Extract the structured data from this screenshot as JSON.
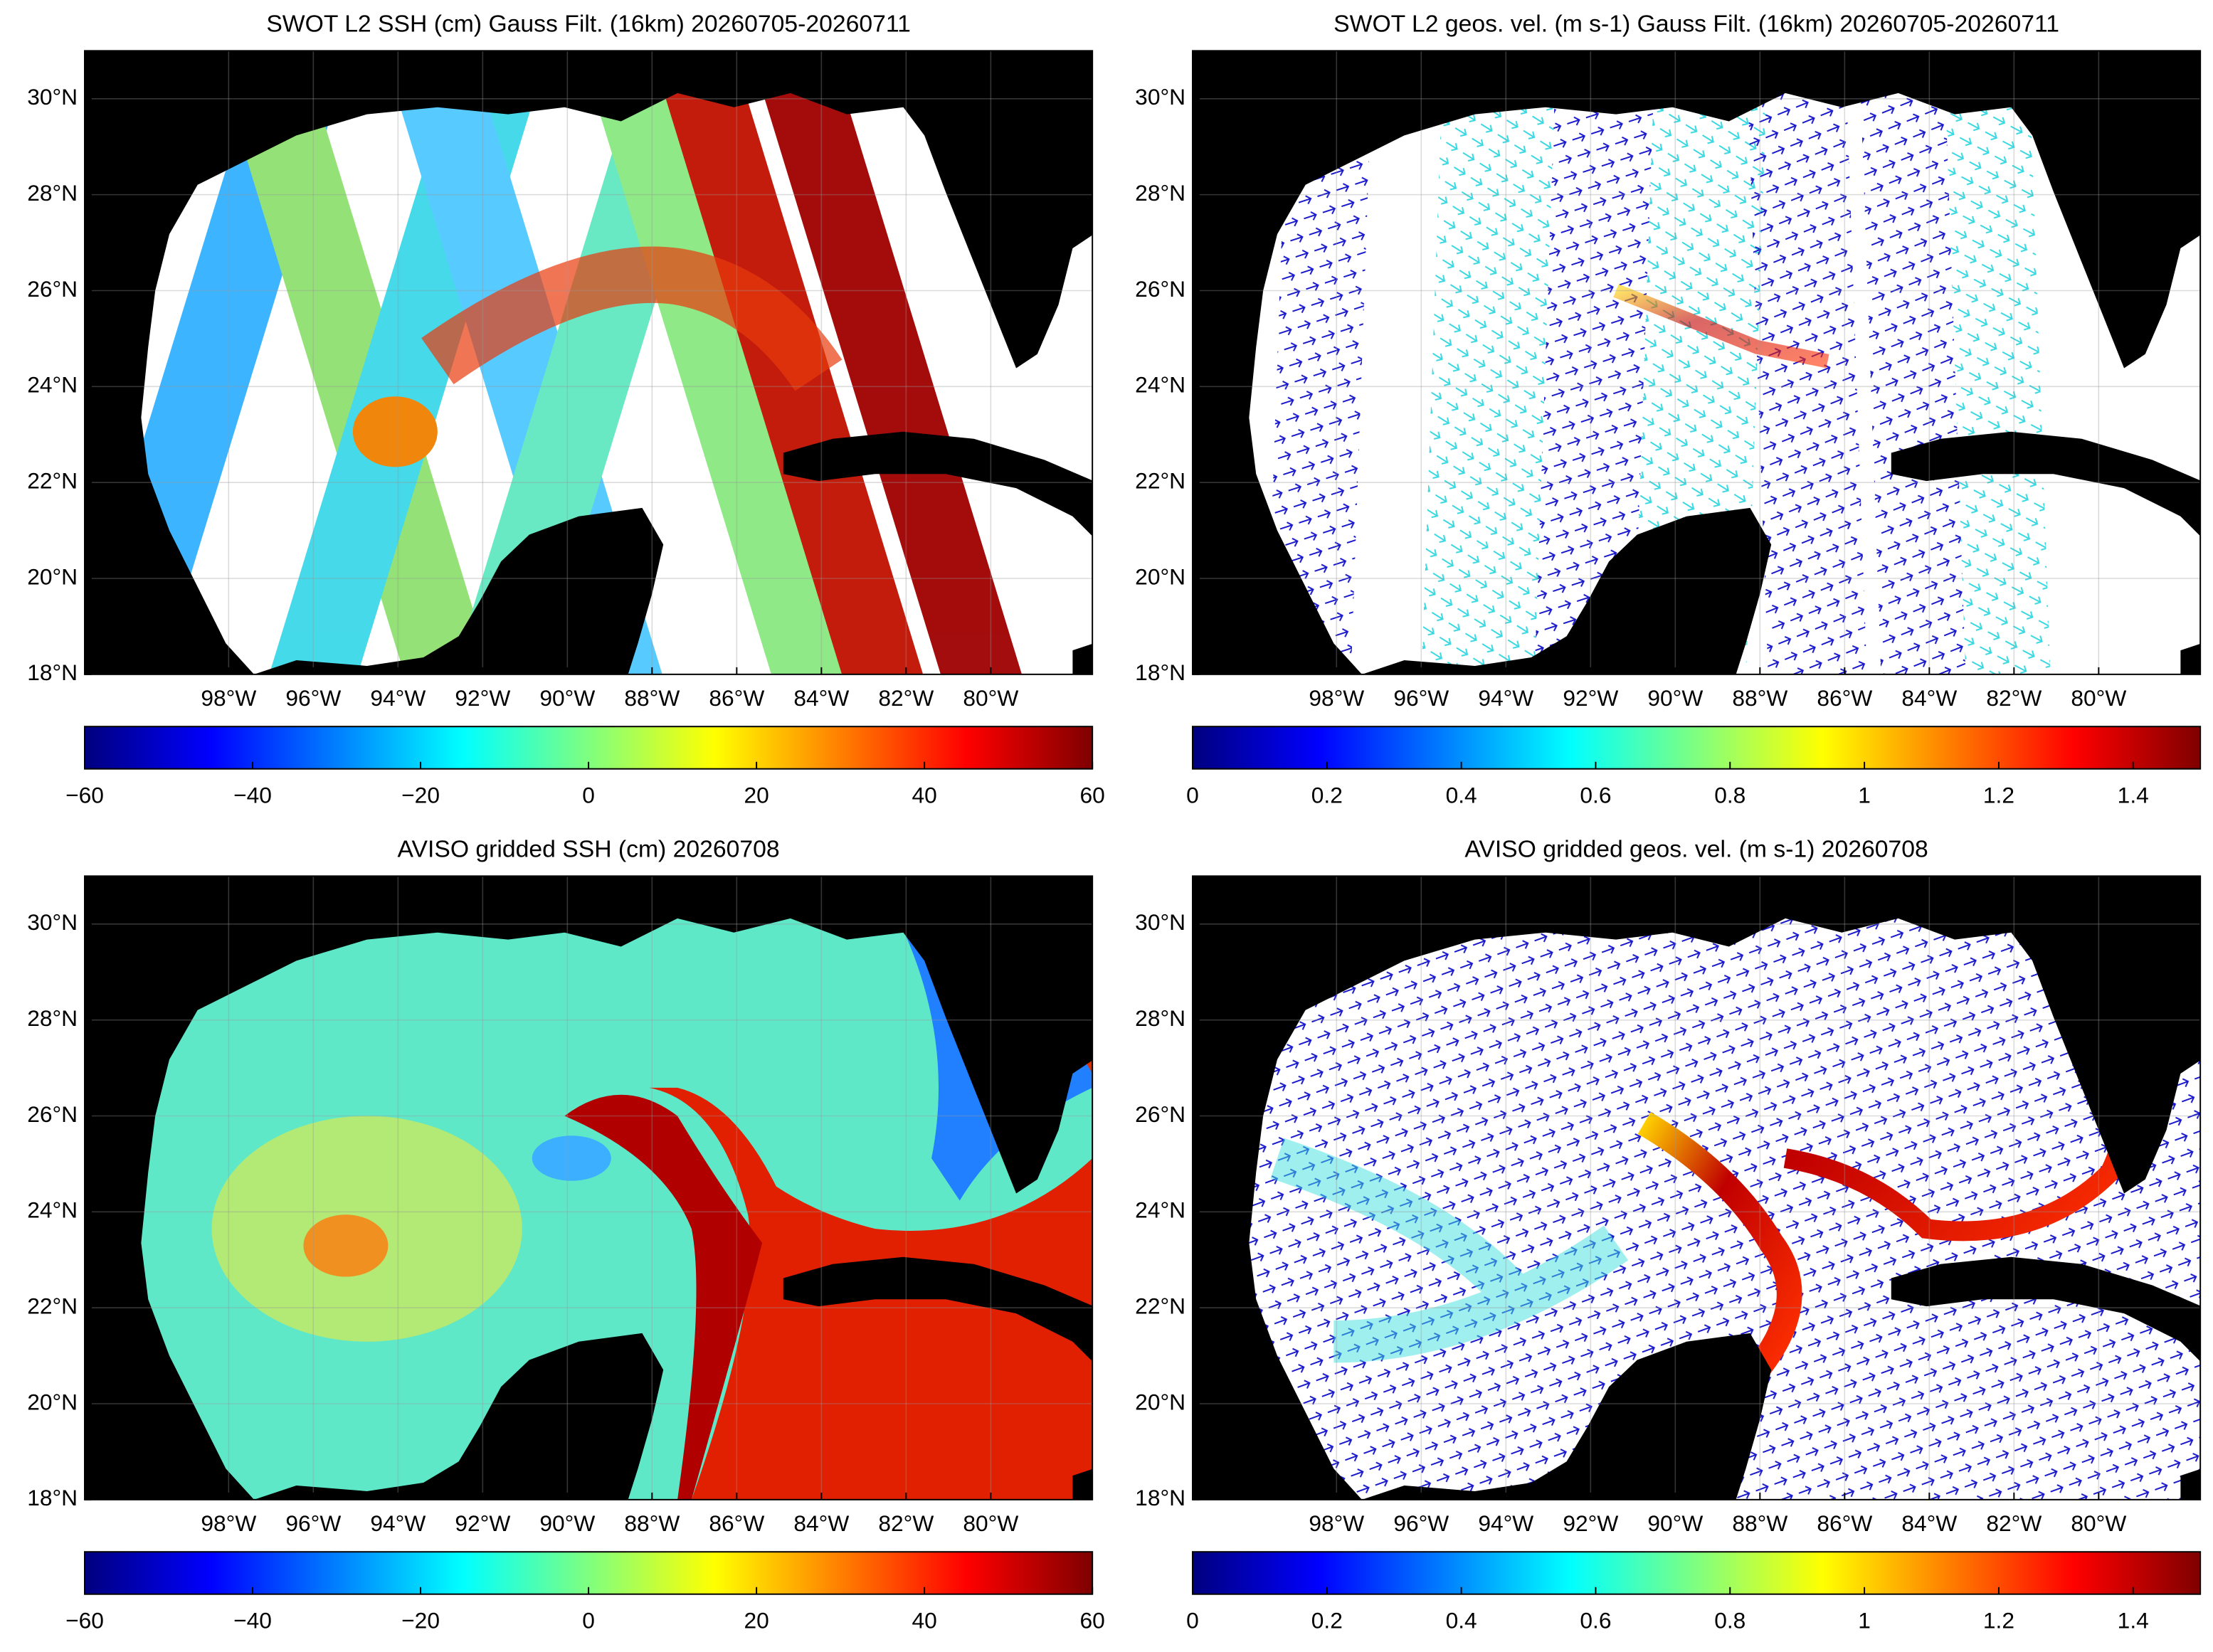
{
  "panels": [
    {
      "title": "SWOT L2 SSH (cm) Gauss Filt. (16km) 20260705-20260711",
      "xlim": [
        -101.4,
        -77.6
      ],
      "ylim": [
        18,
        31
      ],
      "xticks": [
        {
          "value": -98,
          "label": "98°W"
        },
        {
          "value": -96,
          "label": "96°W"
        },
        {
          "value": -94,
          "label": "94°W"
        },
        {
          "value": -92,
          "label": "92°W"
        },
        {
          "value": -90,
          "label": "90°W"
        },
        {
          "value": -88,
          "label": "88°W"
        },
        {
          "value": -86,
          "label": "86°W"
        },
        {
          "value": -84,
          "label": "84°W"
        },
        {
          "value": -82,
          "label": "82°W"
        },
        {
          "value": -80,
          "label": "80°W"
        }
      ],
      "yticks": [
        {
          "value": 18,
          "label": "18°N"
        },
        {
          "value": 20,
          "label": "20°N"
        },
        {
          "value": 22,
          "label": "22°N"
        },
        {
          "value": 24,
          "label": "24°N"
        },
        {
          "value": 26,
          "label": "26°N"
        },
        {
          "value": 28,
          "label": "28°N"
        },
        {
          "value": 30,
          "label": "30°N"
        }
      ],
      "colorbar": {
        "colormap": "jet",
        "clim": [
          -60,
          60
        ],
        "ticks": [
          {
            "value": -60,
            "label": "−60"
          },
          {
            "value": -40,
            "label": "−40"
          },
          {
            "value": -20,
            "label": "−20"
          },
          0,
          20,
          40,
          60
        ]
      }
    },
    {
      "title": "SWOT L2 geos. vel. (m s-1) Gauss Filt. (16km) 20260705-20260711",
      "xlim": [
        -101.4,
        -77.6
      ],
      "ylim": [
        18,
        31
      ],
      "xticks": [
        {
          "value": -98,
          "label": "98°W"
        },
        {
          "value": -96,
          "label": "96°W"
        },
        {
          "value": -94,
          "label": "94°W"
        },
        {
          "value": -92,
          "label": "92°W"
        },
        {
          "value": -90,
          "label": "90°W"
        },
        {
          "value": -88,
          "label": "88°W"
        },
        {
          "value": -86,
          "label": "86°W"
        },
        {
          "value": -84,
          "label": "84°W"
        },
        {
          "value": -82,
          "label": "82°W"
        },
        {
          "value": -80,
          "label": "80°W"
        }
      ],
      "yticks": [
        {
          "value": 18,
          "label": "18°N"
        },
        {
          "value": 20,
          "label": "20°N"
        },
        {
          "value": 22,
          "label": "22°N"
        },
        {
          "value": 24,
          "label": "24°N"
        },
        {
          "value": 26,
          "label": "26°N"
        },
        {
          "value": 28,
          "label": "28°N"
        },
        {
          "value": 30,
          "label": "30°N"
        }
      ],
      "colorbar": {
        "colormap": "jet",
        "clim": [
          0,
          1.5
        ],
        "ticks": [
          0,
          0.2,
          0.4,
          0.6,
          0.8,
          1,
          1.2,
          1.4
        ]
      }
    },
    {
      "title": "AVISO gridded SSH (cm) 20260708",
      "xlim": [
        -101.4,
        -77.6
      ],
      "ylim": [
        18,
        31
      ],
      "xticks": [
        {
          "value": -98,
          "label": "98°W"
        },
        {
          "value": -96,
          "label": "96°W"
        },
        {
          "value": -94,
          "label": "94°W"
        },
        {
          "value": -92,
          "label": "92°W"
        },
        {
          "value": -90,
          "label": "90°W"
        },
        {
          "value": -88,
          "label": "88°W"
        },
        {
          "value": -86,
          "label": "86°W"
        },
        {
          "value": -84,
          "label": "84°W"
        },
        {
          "value": -82,
          "label": "82°W"
        },
        {
          "value": -80,
          "label": "80°W"
        }
      ],
      "yticks": [
        {
          "value": 18,
          "label": "18°N"
        },
        {
          "value": 20,
          "label": "20°N"
        },
        {
          "value": 22,
          "label": "22°N"
        },
        {
          "value": 24,
          "label": "24°N"
        },
        {
          "value": 26,
          "label": "26°N"
        },
        {
          "value": 28,
          "label": "28°N"
        },
        {
          "value": 30,
          "label": "30°N"
        }
      ],
      "colorbar": {
        "colormap": "jet",
        "clim": [
          -60,
          60
        ],
        "ticks": [
          {
            "value": -60,
            "label": "−60"
          },
          {
            "value": -40,
            "label": "−40"
          },
          {
            "value": -20,
            "label": "−20"
          },
          0,
          20,
          40,
          60
        ]
      }
    },
    {
      "title": "AVISO gridded geos. vel. (m s-1)  20260708",
      "xlim": [
        -101.4,
        -77.6
      ],
      "ylim": [
        18,
        31
      ],
      "xticks": [
        {
          "value": -98,
          "label": "98°W"
        },
        {
          "value": -96,
          "label": "96°W"
        },
        {
          "value": -94,
          "label": "94°W"
        },
        {
          "value": -92,
          "label": "92°W"
        },
        {
          "value": -90,
          "label": "90°W"
        },
        {
          "value": -88,
          "label": "88°W"
        },
        {
          "value": -86,
          "label": "86°W"
        },
        {
          "value": -84,
          "label": "84°W"
        },
        {
          "value": -82,
          "label": "82°W"
        },
        {
          "value": -80,
          "label": "80°W"
        }
      ],
      "yticks": [
        {
          "value": 18,
          "label": "18°N"
        },
        {
          "value": 20,
          "label": "20°N"
        },
        {
          "value": 22,
          "label": "22°N"
        },
        {
          "value": 24,
          "label": "24°N"
        },
        {
          "value": 26,
          "label": "26°N"
        },
        {
          "value": 28,
          "label": "28°N"
        },
        {
          "value": 30,
          "label": "30°N"
        }
      ],
      "colorbar": {
        "colormap": "jet",
        "clim": [
          0,
          1.5
        ],
        "ticks": [
          0,
          0.2,
          0.4,
          0.6,
          0.8,
          1,
          1.2,
          1.4
        ]
      }
    }
  ]
}
